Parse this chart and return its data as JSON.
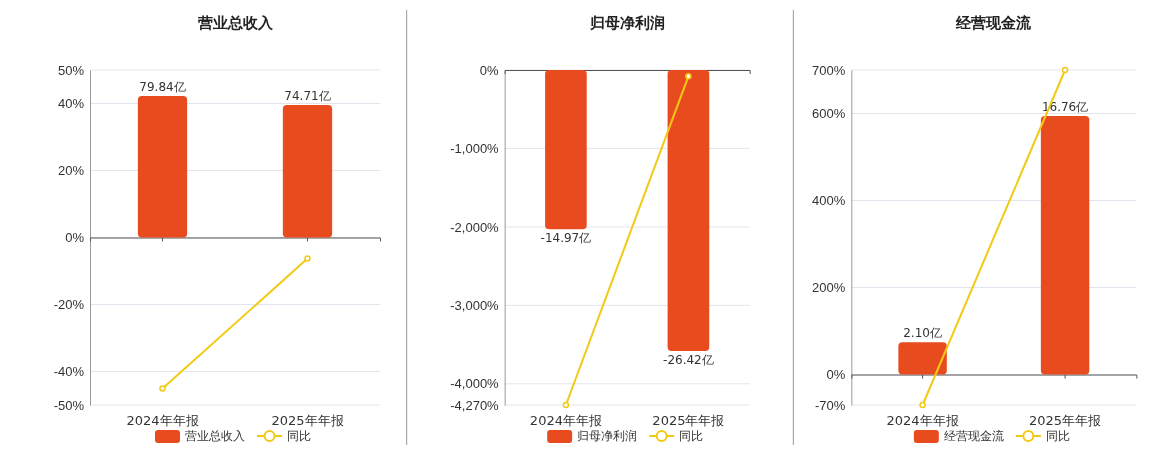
{
  "chart_data": [
    {
      "type": "bar",
      "title": "营业总收入",
      "categories": [
        "2024年年报",
        "2025年年报"
      ],
      "ref_lines": [
        {
          "axis": "y",
          "value": 0,
          "color": "#555555"
        }
      ],
      "legend": "bottom",
      "grid": "y",
      "marker": "circle",
      "ylim": [
        -50,
        50
      ],
      "yticks": [
        {
          "value": -50,
          "label": "-50%"
        },
        {
          "value": -40,
          "label": "-40%"
        },
        {
          "value": -20,
          "label": "-20%"
        },
        {
          "value": 0,
          "label": "0%"
        },
        {
          "value": 20,
          "label": "20%"
        },
        {
          "value": 40,
          "label": "40%"
        },
        {
          "value": 50,
          "label": "50%"
        }
      ],
      "y2lim": [
        -94.5,
        94.5
      ],
      "series": [
        {
          "name": "营业总收入",
          "axis": "y2",
          "color": "#e84c1e",
          "values": [
            79.84,
            74.71
          ],
          "value_labels": [
            "79.84亿",
            "74.71亿"
          ]
        },
        {
          "name": "同比",
          "type": "line",
          "color": "#f2c914",
          "values": [
            -45.1,
            -6.3
          ]
        }
      ]
    },
    {
      "type": "bar",
      "title": "归母净利润",
      "categories": [
        "2024年年报",
        "2025年年报"
      ],
      "ref_lines": [
        {
          "axis": "y",
          "value": 0,
          "color": "#555555"
        }
      ],
      "legend": "bottom",
      "grid": "y",
      "marker": "circle",
      "ylim": [
        -4270,
        0
      ],
      "yticks": [
        {
          "value": -4270,
          "label": "-4,270%"
        },
        {
          "value": -4000,
          "label": "-4,000%"
        },
        {
          "value": -3000,
          "label": "-3,000%"
        },
        {
          "value": -2000,
          "label": "-2,000%"
        },
        {
          "value": -1000,
          "label": "-1,000%"
        },
        {
          "value": 0,
          "label": "0%"
        }
      ],
      "y2lim": [
        -31.5,
        0
      ],
      "series": [
        {
          "name": "归母净利润",
          "axis": "y2",
          "color": "#e84c1e",
          "values": [
            -14.97,
            -26.42
          ],
          "value_labels": [
            "-14.97亿",
            "-26.42亿"
          ]
        },
        {
          "name": "同比",
          "type": "line",
          "color": "#f2c914",
          "values": [
            -4270,
            -80
          ]
        }
      ]
    },
    {
      "type": "bar",
      "title": "经营现金流",
      "categories": [
        "2024年年报",
        "2025年年报"
      ],
      "ref_lines": [
        {
          "axis": "y",
          "value": 0,
          "color": "#555555"
        }
      ],
      "legend": "bottom",
      "grid": "y",
      "marker": "circle",
      "ylim": [
        -70,
        700
      ],
      "yticks": [
        {
          "value": -70,
          "label": "-70%"
        },
        {
          "value": 0,
          "label": "0%"
        },
        {
          "value": 200,
          "label": "200%"
        },
        {
          "value": 400,
          "label": "400%"
        },
        {
          "value": 600,
          "label": "600%"
        },
        {
          "value": 700,
          "label": "700%"
        }
      ],
      "y2lim": [
        -1.97,
        19.75
      ],
      "series": [
        {
          "name": "经营现金流",
          "axis": "y2",
          "color": "#e84c1e",
          "values": [
            2.1,
            16.76
          ],
          "value_labels": [
            "2.10亿",
            "16.76亿"
          ]
        },
        {
          "name": "同比",
          "type": "line",
          "color": "#f2c914",
          "values": [
            -70,
            700
          ]
        }
      ]
    }
  ]
}
